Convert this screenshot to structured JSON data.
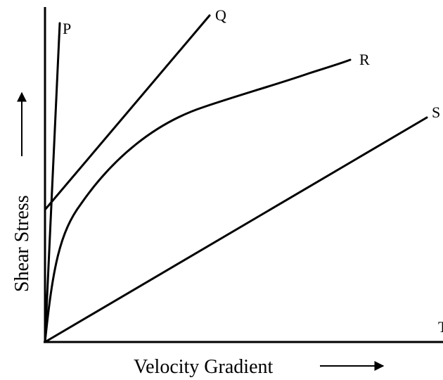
{
  "y_axis_label": "Shear Stress",
  "x_axis_label": "Velocity Gradient",
  "curves": [
    {
      "label": "P"
    },
    {
      "label": "Q"
    },
    {
      "label": "R"
    },
    {
      "label": "S"
    },
    {
      "label": "T"
    }
  ]
}
